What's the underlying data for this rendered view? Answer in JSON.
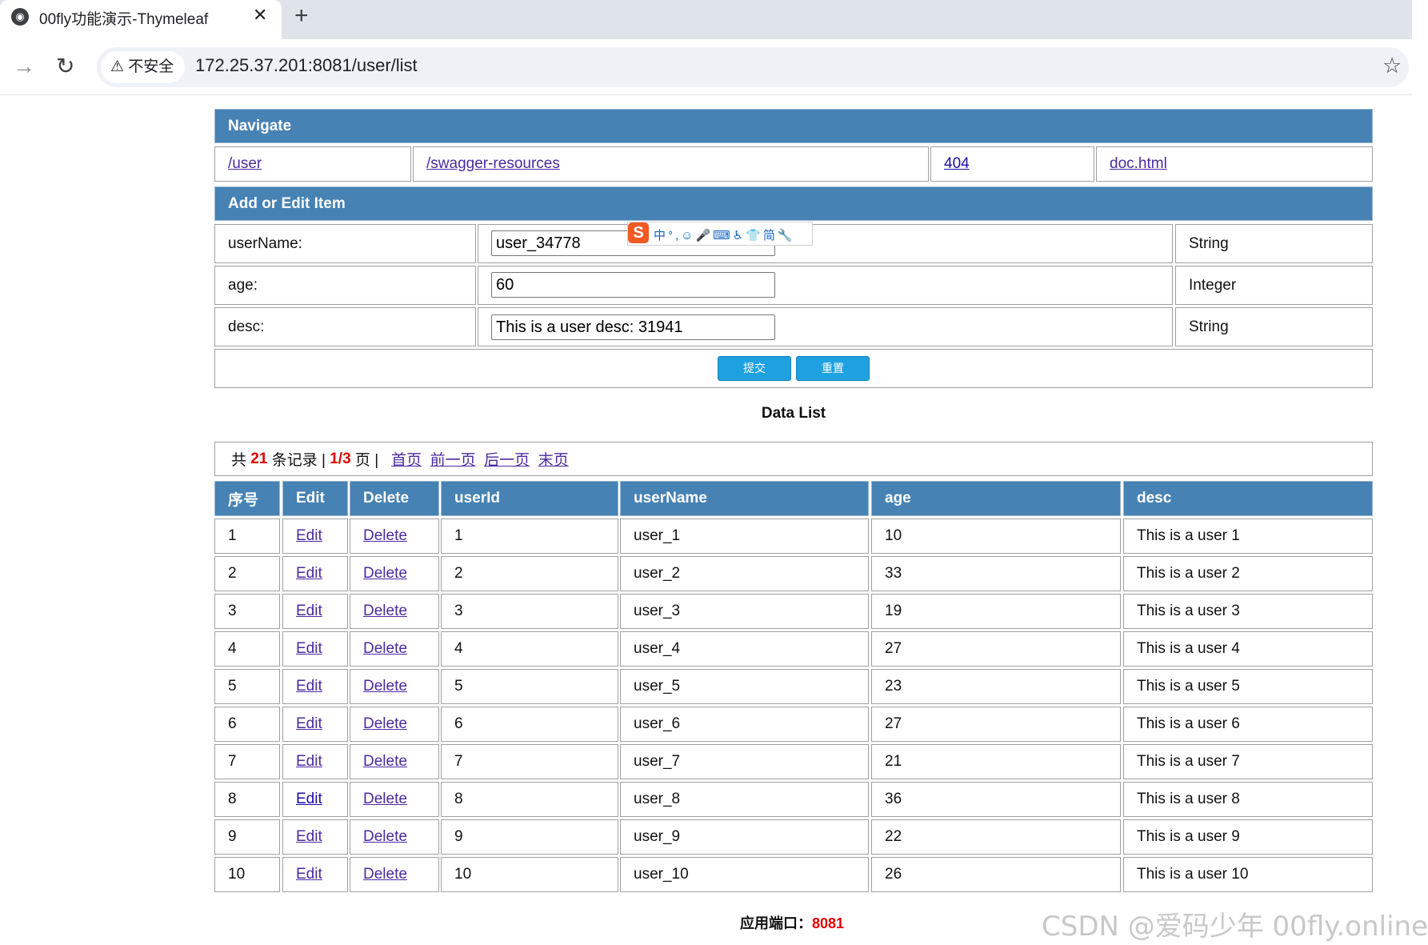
{
  "browser": {
    "tab_title": "00fly功能演示-Thymeleaf",
    "tab_close": "✕",
    "new_tab": "+",
    "back": "→",
    "reload": "↻",
    "security_label": "⚠ 不安全",
    "url": "172.25.37.201:8081/user/list",
    "star": "☆"
  },
  "navigate": {
    "title": "Navigate",
    "links": [
      "/user",
      "/swagger-resources",
      "404",
      "doc.html"
    ]
  },
  "form": {
    "title": "Add or Edit Item",
    "fields": [
      {
        "label": "userName:",
        "value": "user_34778",
        "type": "String"
      },
      {
        "label": "age:",
        "value": "60",
        "type": "Integer"
      },
      {
        "label": "desc:",
        "value": "This is a user desc: 31941",
        "type": "String"
      }
    ],
    "submit_label": "提交",
    "reset_label": "重置"
  },
  "ime_toolbar": {
    "logo": "S",
    "items": "中°,☺🎤⌨♿👕简🔧"
  },
  "data_list": {
    "title": "Data List",
    "pager": {
      "prefix": "共",
      "total": "21",
      "records_label": "条记录 |",
      "page": "1/3",
      "page_label": "页 |",
      "first": "首页",
      "prev": "前一页",
      "next": "后一页",
      "last": "末页"
    },
    "columns": [
      "序号",
      "Edit",
      "Delete",
      "userId",
      "userName",
      "age",
      "desc"
    ],
    "edit_label": "Edit",
    "delete_label": "Delete",
    "rows": [
      {
        "no": "1",
        "userId": "1",
        "userName": "user_1",
        "age": "10",
        "desc": "This is a user 1"
      },
      {
        "no": "2",
        "userId": "2",
        "userName": "user_2",
        "age": "33",
        "desc": "This is a user 2"
      },
      {
        "no": "3",
        "userId": "3",
        "userName": "user_3",
        "age": "19",
        "desc": "This is a user 3"
      },
      {
        "no": "4",
        "userId": "4",
        "userName": "user_4",
        "age": "27",
        "desc": "This is a user 4"
      },
      {
        "no": "5",
        "userId": "5",
        "userName": "user_5",
        "age": "23",
        "desc": "This is a user 5"
      },
      {
        "no": "6",
        "userId": "6",
        "userName": "user_6",
        "age": "27",
        "desc": "This is a user 6"
      },
      {
        "no": "7",
        "userId": "7",
        "userName": "user_7",
        "age": "21",
        "desc": "This is a user 7"
      },
      {
        "no": "8",
        "userId": "8",
        "userName": "user_8",
        "age": "36",
        "desc": "This is a user 8"
      },
      {
        "no": "9",
        "userId": "9",
        "userName": "user_9",
        "age": "22",
        "desc": "This is a user 9"
      },
      {
        "no": "10",
        "userId": "10",
        "userName": "user_10",
        "age": "26",
        "desc": "This is a user 10"
      }
    ]
  },
  "footer": {
    "label": "应用端口：",
    "port": "8081"
  },
  "watermark": "CSDN @爱码少年 00fly.online",
  "colors": {
    "header_blue": "#4682b4",
    "button_blue": "#1da1e0",
    "accent_red": "#e00000"
  }
}
